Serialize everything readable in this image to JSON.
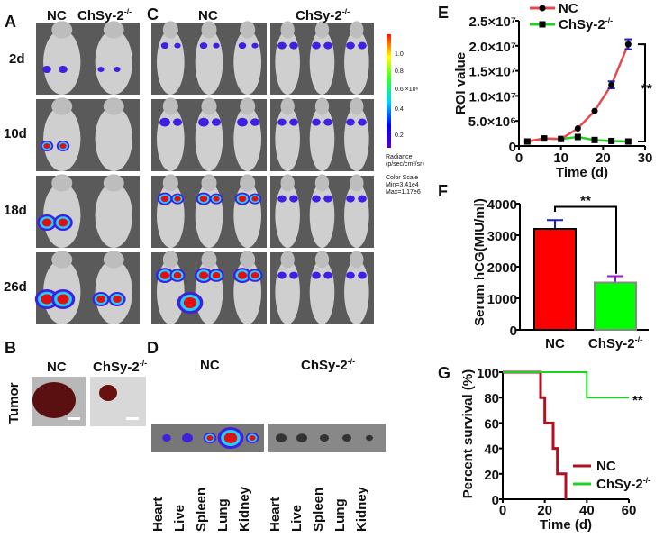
{
  "panels": {
    "A": {
      "label": "A",
      "col_nc": "NC",
      "col_ko": "ChSy-2",
      "col_ko_sup": "-/-",
      "rows": [
        "2d",
        "10d",
        "18d",
        "26d"
      ]
    },
    "B": {
      "label": "B",
      "row": "Tumor",
      "col_nc": "NC",
      "col_ko": "ChSy-2",
      "col_ko_sup": "-/-"
    },
    "C": {
      "label": "C",
      "col_nc": "NC",
      "col_ko": "ChSy-2",
      "col_ko_sup": "-/-",
      "colorbar": {
        "ticks": [
          "1.0",
          "0.8",
          "0.6 ×10⁶",
          "0.4",
          "0.2"
        ],
        "unit1": "Radiance",
        "unit2": "(p/sec/cm²/sr)",
        "scale1": "Color Scale",
        "scale2": "Min=3.41e4",
        "scale3": "Max=1.17e6"
      }
    },
    "D": {
      "label": "D",
      "col_nc": "NC",
      "col_ko": "ChSy-2",
      "col_ko_sup": "-/-",
      "organs": [
        "Heart",
        "Live",
        "Spleen",
        "Lung",
        "Kidney"
      ]
    }
  },
  "colors": {
    "nc_line": "#e84a4a",
    "ko_line": "#22d022",
    "nc_bar": "#ff0000",
    "ko_bar": "#00ff00",
    "err_blue": "#1a1ad0",
    "err_purple": "#9a1ad0",
    "nc_surv": "#b01020"
  },
  "chart_data": [
    {
      "panel": "E",
      "type": "line",
      "xlabel": "Time (d)",
      "ylabel": "ROI value",
      "xlim": [
        0,
        30
      ],
      "ylim": [
        0,
        25000000
      ],
      "xticks": [
        "0",
        "10",
        "20",
        "30"
      ],
      "yticks": [
        "0",
        "5.0×10⁶",
        "1.0×10⁷",
        "1.5×10⁷",
        "2.0×10⁷",
        "2.5×10⁷"
      ],
      "legend": "top-left",
      "significance": "**",
      "series": [
        {
          "name": "NC",
          "sup": "",
          "marker": "circle",
          "x": [
            2,
            6,
            10,
            14,
            18,
            22,
            26
          ],
          "y": [
            900000,
            1500000,
            1400000,
            3500000,
            7000000,
            12200000,
            20300000
          ],
          "err": [
            0,
            0,
            0,
            0,
            0,
            700000,
            1000000
          ]
        },
        {
          "name": "ChSy-2",
          "sup": "-/-",
          "marker": "square",
          "x": [
            2,
            6,
            10,
            14,
            18,
            22,
            26
          ],
          "y": [
            900000,
            1500000,
            1400000,
            1800000,
            1200000,
            1000000,
            900000
          ],
          "err": [
            0,
            0,
            0,
            0,
            0,
            0,
            0
          ]
        }
      ]
    },
    {
      "panel": "F",
      "type": "bar",
      "ylabel": "Serum hCG(MIU/ml)",
      "ylim": [
        0,
        4000
      ],
      "yticks": [
        "0",
        "1000",
        "2000",
        "3000",
        "4000"
      ],
      "categories": [
        "NC",
        "ChSy-2"
      ],
      "category_sup": [
        "",
        "-/-"
      ],
      "values": [
        3200,
        1500
      ],
      "err": [
        280,
        200
      ],
      "significance": "**"
    },
    {
      "panel": "G",
      "type": "line",
      "xlabel": "Time (d)",
      "ylabel": "Percent survival (%)",
      "xlim": [
        0,
        60
      ],
      "ylim": [
        0,
        100
      ],
      "xticks": [
        "0",
        "20",
        "40",
        "60"
      ],
      "yticks": [
        "0",
        "20",
        "40",
        "60",
        "80",
        "100"
      ],
      "legend": "bottom-right",
      "significance": "**",
      "series": [
        {
          "name": "NC",
          "sup": "",
          "step_x": [
            0,
            18,
            20,
            24,
            26,
            30
          ],
          "step_y": [
            100,
            80,
            60,
            40,
            20,
            0
          ],
          "end_x": 30
        },
        {
          "name": "ChSy-2",
          "sup": "-/-",
          "step_x": [
            0,
            40
          ],
          "step_y": [
            100,
            80
          ],
          "end_x": 60
        }
      ]
    }
  ]
}
